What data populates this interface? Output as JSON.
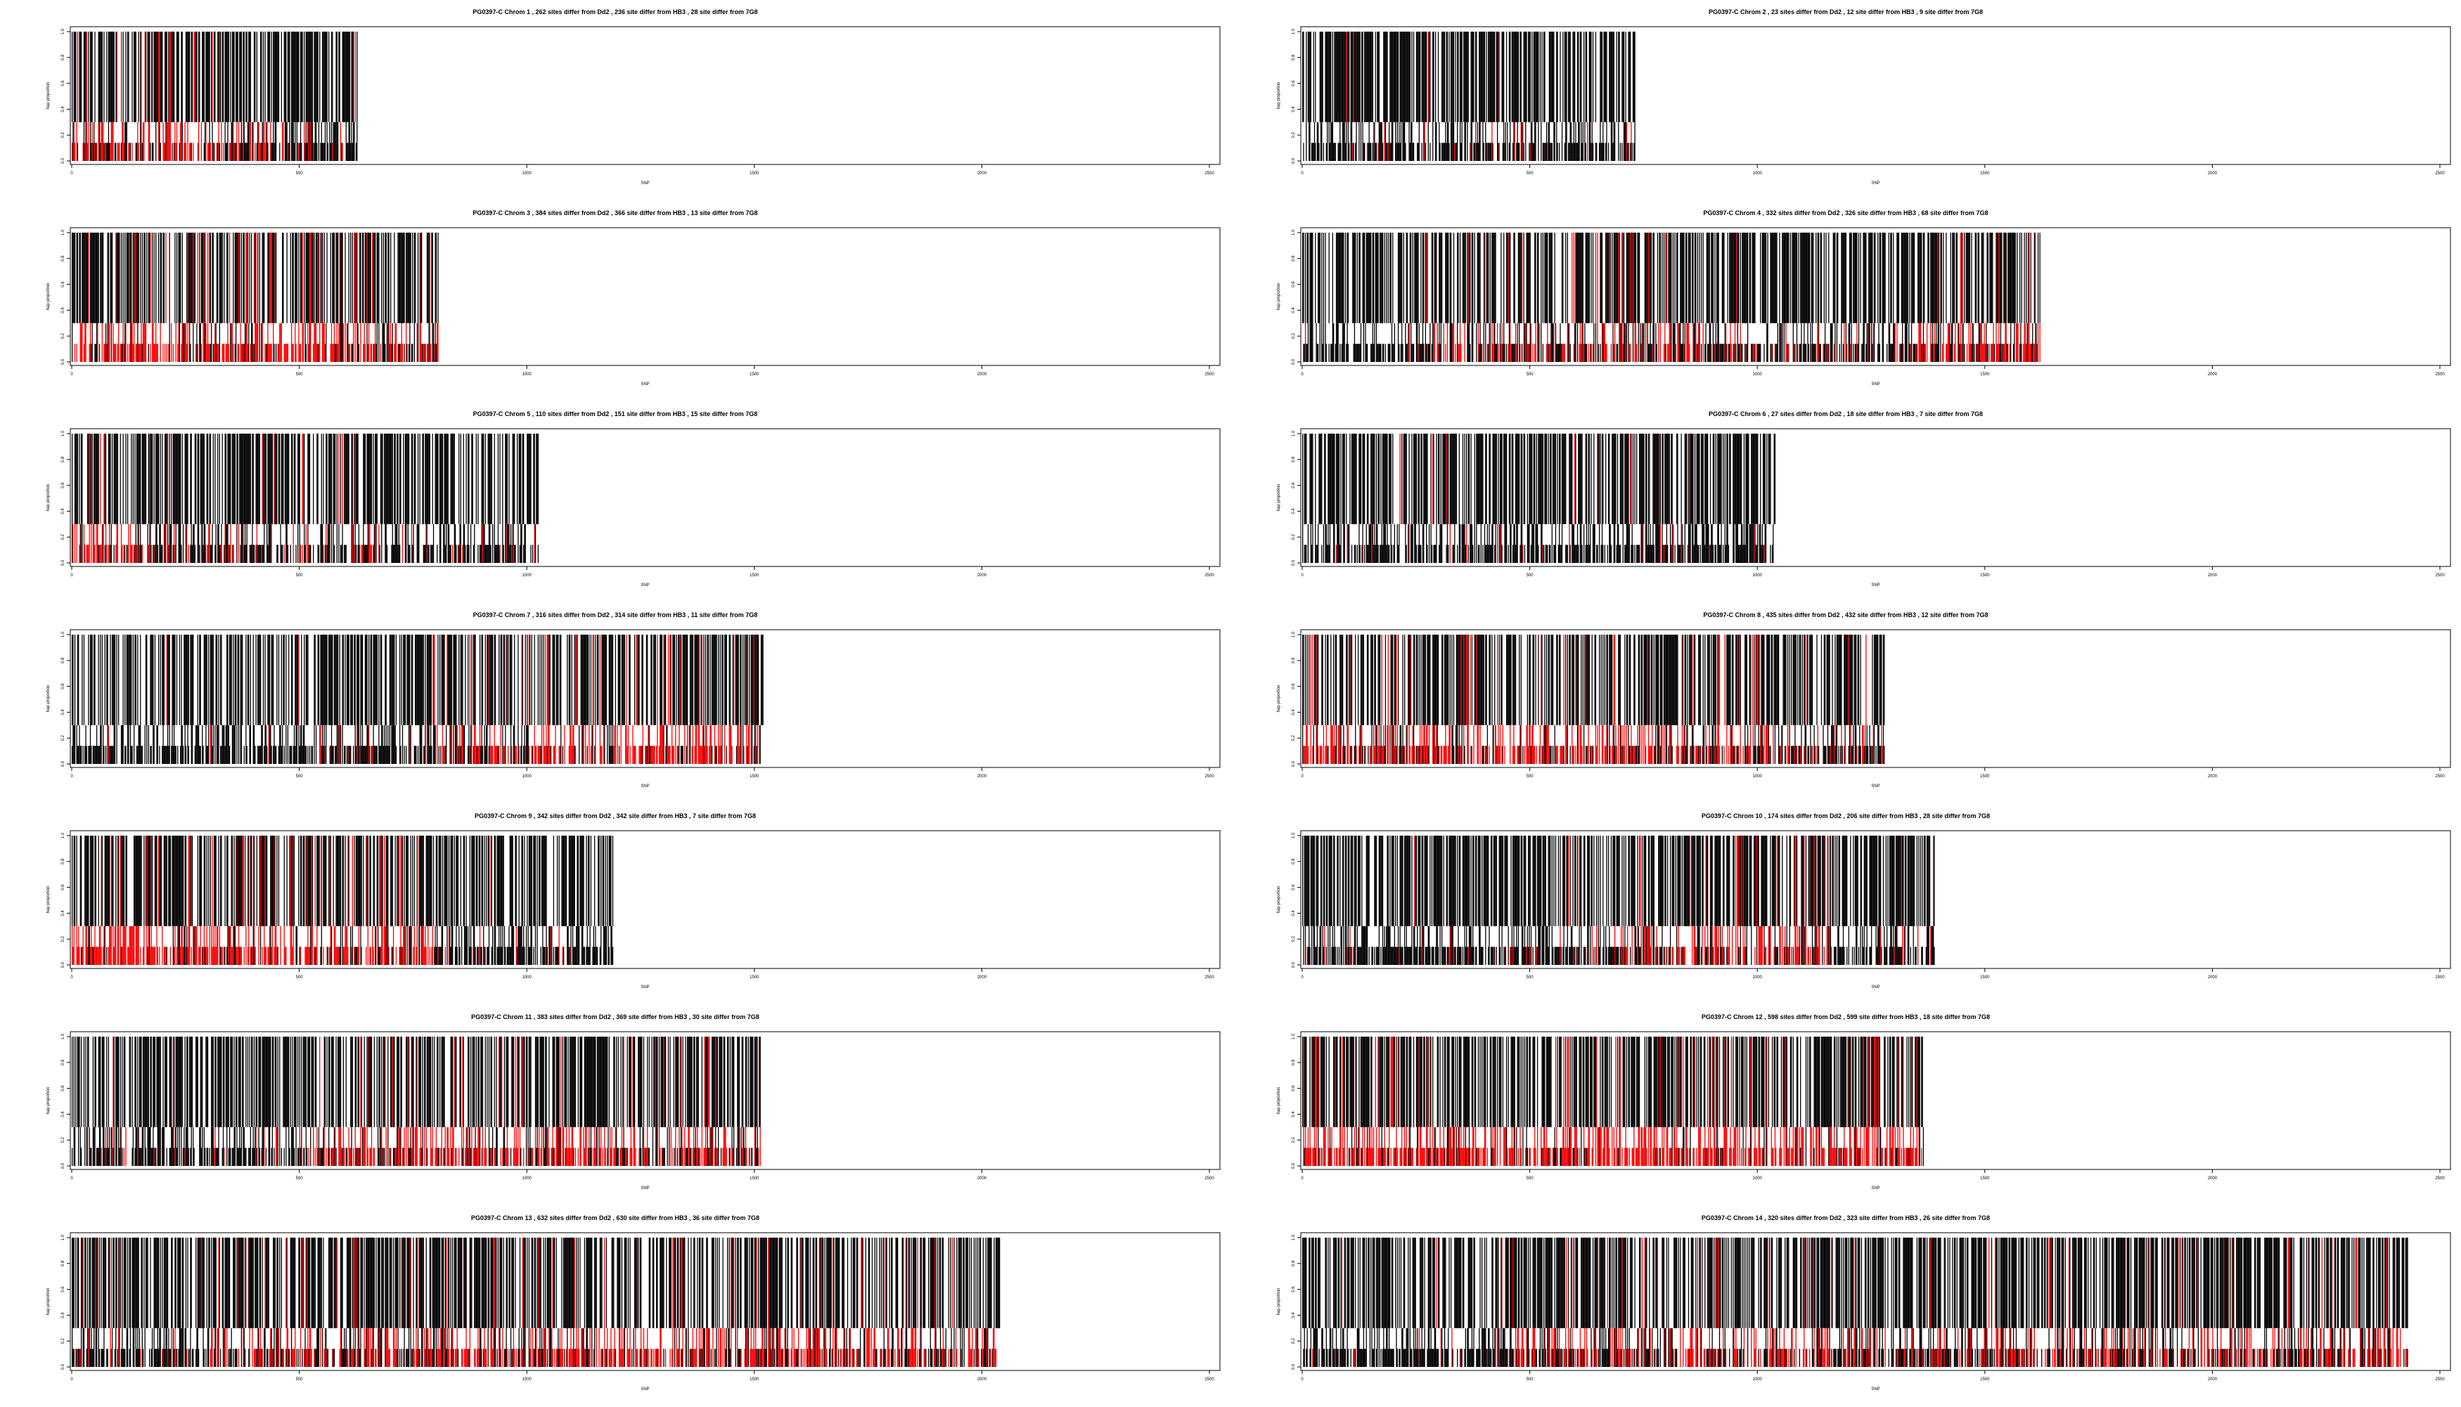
{
  "colors": {
    "reference_match": "#000000",
    "differs": "#ff0000",
    "frame": "#000000"
  },
  "shared": {
    "xlabel": "SNP",
    "ylabel": "hap proportion",
    "xticks": [
      0,
      500,
      1000,
      1500,
      2000,
      2500
    ],
    "yticks": [
      "0.0",
      "0.2",
      "0.4",
      "0.6",
      "0.8",
      "1.0"
    ],
    "xlim": [
      0,
      2500
    ],
    "ylim": [
      0,
      1
    ]
  },
  "chart_data": [
    {
      "type": "bar",
      "title": "PG0397-C Chrom 1 , 262 sites differ from Dd2 , 236 site differ from HB3 , 28 site differ from 7G8",
      "n_snps": 628,
      "seed": 11,
      "lower_split": 0.3,
      "red_density": [
        0.55,
        0.65,
        0.7,
        0.5,
        0.35,
        0.1
      ]
    },
    {
      "type": "bar",
      "title": "PG0397-C Chrom 2 , 23 sites differ from Dd2 , 12 site differ from HB3 , 9 site differ from 7G8",
      "n_snps": 735,
      "seed": 22,
      "lower_split": 0.3,
      "red_density": [
        0.05,
        0.1,
        0.05,
        0.15,
        0.1,
        0.05
      ]
    },
    {
      "type": "bar",
      "title": "PG0397-C Chrom 3 , 384 sites differ from Dd2 , 366 site differ from HB3 , 13 site differ from 7G8",
      "n_snps": 805,
      "seed": 33,
      "lower_split": 0.3,
      "red_density": [
        0.75,
        0.8,
        0.7,
        0.8,
        0.7,
        0.6
      ]
    },
    {
      "type": "bar",
      "title": "PG0397-C Chrom 4 , 332 sites differ from Dd2 , 326 site differ from HB3 , 68 site differ from 7G8",
      "n_snps": 1622,
      "seed": 44,
      "lower_split": 0.3,
      "red_density": [
        0.05,
        0.5,
        0.45,
        0.3,
        0.2,
        0.6
      ]
    },
    {
      "type": "bar",
      "title": "PG0397-C Chrom 5 , 110 sites differ from Dd2 , 151 site differ from HB3 , 15 site differ from 7G8",
      "n_snps": 1025,
      "seed": 55,
      "lower_split": 0.3,
      "red_density": [
        0.7,
        0.2,
        0.25,
        0.3,
        0.1,
        0.05
      ]
    },
    {
      "type": "bar",
      "title": "PG0397-C Chrom 6 , 27 sites differ from Dd2 , 18 site differ from HB3 , 7 site differ from 7G8",
      "n_snps": 1040,
      "seed": 66,
      "lower_split": 0.3,
      "red_density": [
        0.05,
        0.08,
        0.1,
        0.05,
        0.1,
        0.05
      ]
    },
    {
      "type": "bar",
      "title": "PG0397-C Chrom 7 , 316 sites differ from Dd2 , 314 site differ from HB3 , 11 site differ from 7G8",
      "n_snps": 1520,
      "seed": 77,
      "lower_split": 0.3,
      "red_density": [
        0.05,
        0.05,
        0.1,
        0.4,
        0.75,
        0.7
      ]
    },
    {
      "type": "bar",
      "title": "PG0397-C Chrom 8 , 435 sites differ from Dd2 , 432 site differ from HB3 , 12 site differ from 7G8",
      "n_snps": 1280,
      "seed": 88,
      "lower_split": 0.3,
      "red_density": [
        0.75,
        0.7,
        0.75,
        0.7,
        0.6,
        0.3
      ]
    },
    {
      "type": "bar",
      "title": "PG0397-C Chrom 9 , 342 sites differ from Dd2 , 342 site differ from HB3 , 7 site differ from 7G8",
      "n_snps": 1190,
      "seed": 99,
      "lower_split": 0.3,
      "red_density": [
        0.8,
        0.75,
        0.8,
        0.6,
        0.1,
        0.05
      ]
    },
    {
      "type": "bar",
      "title": "PG0397-C Chrom 10 , 174 sites differ from Dd2 , 206 site differ from HB3 , 28 site differ from 7G8",
      "n_snps": 1390,
      "seed": 111,
      "lower_split": 0.3,
      "red_density": [
        0.05,
        0.1,
        0.15,
        0.45,
        0.55,
        0.1
      ]
    },
    {
      "type": "bar",
      "title": "PG0397-C Chrom 11 , 383 sites differ from Dd2 , 369 site differ from HB3 , 30 site differ from 7G8",
      "n_snps": 1515,
      "seed": 122,
      "lower_split": 0.3,
      "red_density": [
        0.1,
        0.1,
        0.5,
        0.65,
        0.65,
        0.5
      ]
    },
    {
      "type": "bar",
      "title": "PG0397-C Chrom 12 , 598 sites differ from Dd2 , 599 site differ from HB3 , 18 site differ from 7G8",
      "n_snps": 1365,
      "seed": 133,
      "lower_split": 0.3,
      "red_density": [
        0.8,
        0.85,
        0.8,
        0.85,
        0.8,
        0.8
      ]
    },
    {
      "type": "bar",
      "title": "PG0397-C Chrom 13 , 632 sites differ from Dd2 , 630 site differ from HB3 , 36 site differ from 7G8",
      "n_snps": 2040,
      "seed": 144,
      "lower_split": 0.3,
      "red_density": [
        0.2,
        0.5,
        0.6,
        0.65,
        0.6,
        0.55
      ]
    },
    {
      "type": "bar",
      "title": "PG0397-C Chrom 14 , 320 sites differ from Dd2 , 323 site differ from HB3 , 26 site differ from 7G8",
      "n_snps": 2430,
      "seed": 155,
      "lower_split": 0.3,
      "red_density": [
        0.05,
        0.4,
        0.45,
        0.4,
        0.45,
        0.5
      ]
    }
  ]
}
